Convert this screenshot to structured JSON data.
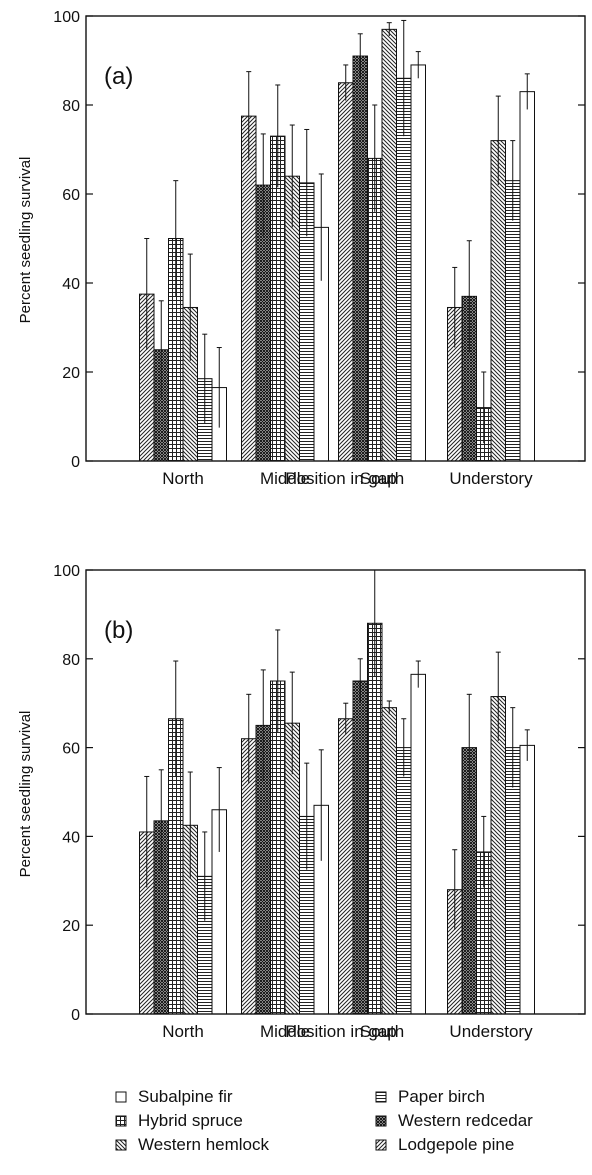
{
  "chart_data": [
    {
      "type": "bar",
      "panel_label": "(a)",
      "xlabel": "Position in gap",
      "ylabel": "Percent seedling survival",
      "ylim": [
        0,
        100
      ],
      "yticks": [
        0,
        20,
        40,
        60,
        80,
        100
      ],
      "categories": [
        "North",
        "Middle",
        "South",
        "Understory"
      ],
      "grid": false,
      "series": [
        {
          "name": "Lodgepole pine",
          "pattern": "diag-fwd",
          "values": [
            37.5,
            77.5,
            85,
            34.5
          ],
          "errors": [
            12.5,
            10,
            4,
            9
          ]
        },
        {
          "name": "Western redcedar",
          "pattern": "cross",
          "values": [
            25,
            62,
            91,
            37
          ],
          "errors": [
            11,
            11.5,
            5,
            12.5
          ]
        },
        {
          "name": "Hybrid spruce",
          "pattern": "grid",
          "values": [
            50,
            73,
            68,
            12
          ],
          "errors": [
            13,
            11.5,
            12,
            8
          ]
        },
        {
          "name": "Western hemlock",
          "pattern": "diag-back",
          "values": [
            34.5,
            64,
            97,
            72
          ],
          "errors": [
            12,
            11.5,
            1.5,
            10
          ]
        },
        {
          "name": "Paper birch",
          "pattern": "horiz",
          "values": [
            18.5,
            62.5,
            86,
            63
          ],
          "errors": [
            10,
            12,
            13,
            9
          ]
        },
        {
          "name": "Subalpine fir",
          "pattern": "empty",
          "values": [
            16.5,
            52.5,
            89,
            83
          ],
          "errors": [
            9,
            12,
            3,
            4
          ]
        }
      ]
    },
    {
      "type": "bar",
      "panel_label": "(b)",
      "xlabel": "Position in gap",
      "ylabel": "Percent seedling survival",
      "ylim": [
        0,
        100
      ],
      "yticks": [
        0,
        20,
        40,
        60,
        80,
        100
      ],
      "categories": [
        "North",
        "Middle",
        "South",
        "Understory"
      ],
      "grid": false,
      "series": [
        {
          "name": "Lodgepole pine",
          "pattern": "diag-fwd",
          "values": [
            41,
            62,
            66.5,
            28
          ],
          "errors": [
            12.5,
            10,
            3.5,
            9
          ]
        },
        {
          "name": "Western redcedar",
          "pattern": "cross",
          "values": [
            43.5,
            65,
            75,
            60
          ],
          "errors": [
            11.5,
            12.5,
            5,
            12
          ]
        },
        {
          "name": "Hybrid spruce",
          "pattern": "grid",
          "values": [
            66.5,
            75,
            88,
            36.5
          ],
          "errors": [
            13,
            11.5,
            12,
            8
          ]
        },
        {
          "name": "Western hemlock",
          "pattern": "diag-back",
          "values": [
            42.5,
            65.5,
            69,
            71.5
          ],
          "errors": [
            12,
            11.5,
            1.5,
            10
          ]
        },
        {
          "name": "Paper birch",
          "pattern": "horiz",
          "values": [
            31,
            44.5,
            60,
            60
          ],
          "errors": [
            10,
            12,
            6.5,
            9
          ]
        },
        {
          "name": "Subalpine fir",
          "pattern": "empty",
          "values": [
            46,
            47,
            76.5,
            60.5
          ],
          "errors": [
            9.5,
            12.5,
            3,
            3.5
          ]
        }
      ]
    }
  ],
  "legend": {
    "placement": "bottom",
    "items": [
      {
        "label": "Subalpine fir",
        "pattern": "empty"
      },
      {
        "label": "Paper birch",
        "pattern": "horiz"
      },
      {
        "label": "Hybrid spruce",
        "pattern": "grid"
      },
      {
        "label": "Western redcedar",
        "pattern": "cross"
      },
      {
        "label": "Western hemlock",
        "pattern": "diag-back"
      },
      {
        "label": "Lodgepole pine",
        "pattern": "diag-fwd"
      }
    ]
  }
}
